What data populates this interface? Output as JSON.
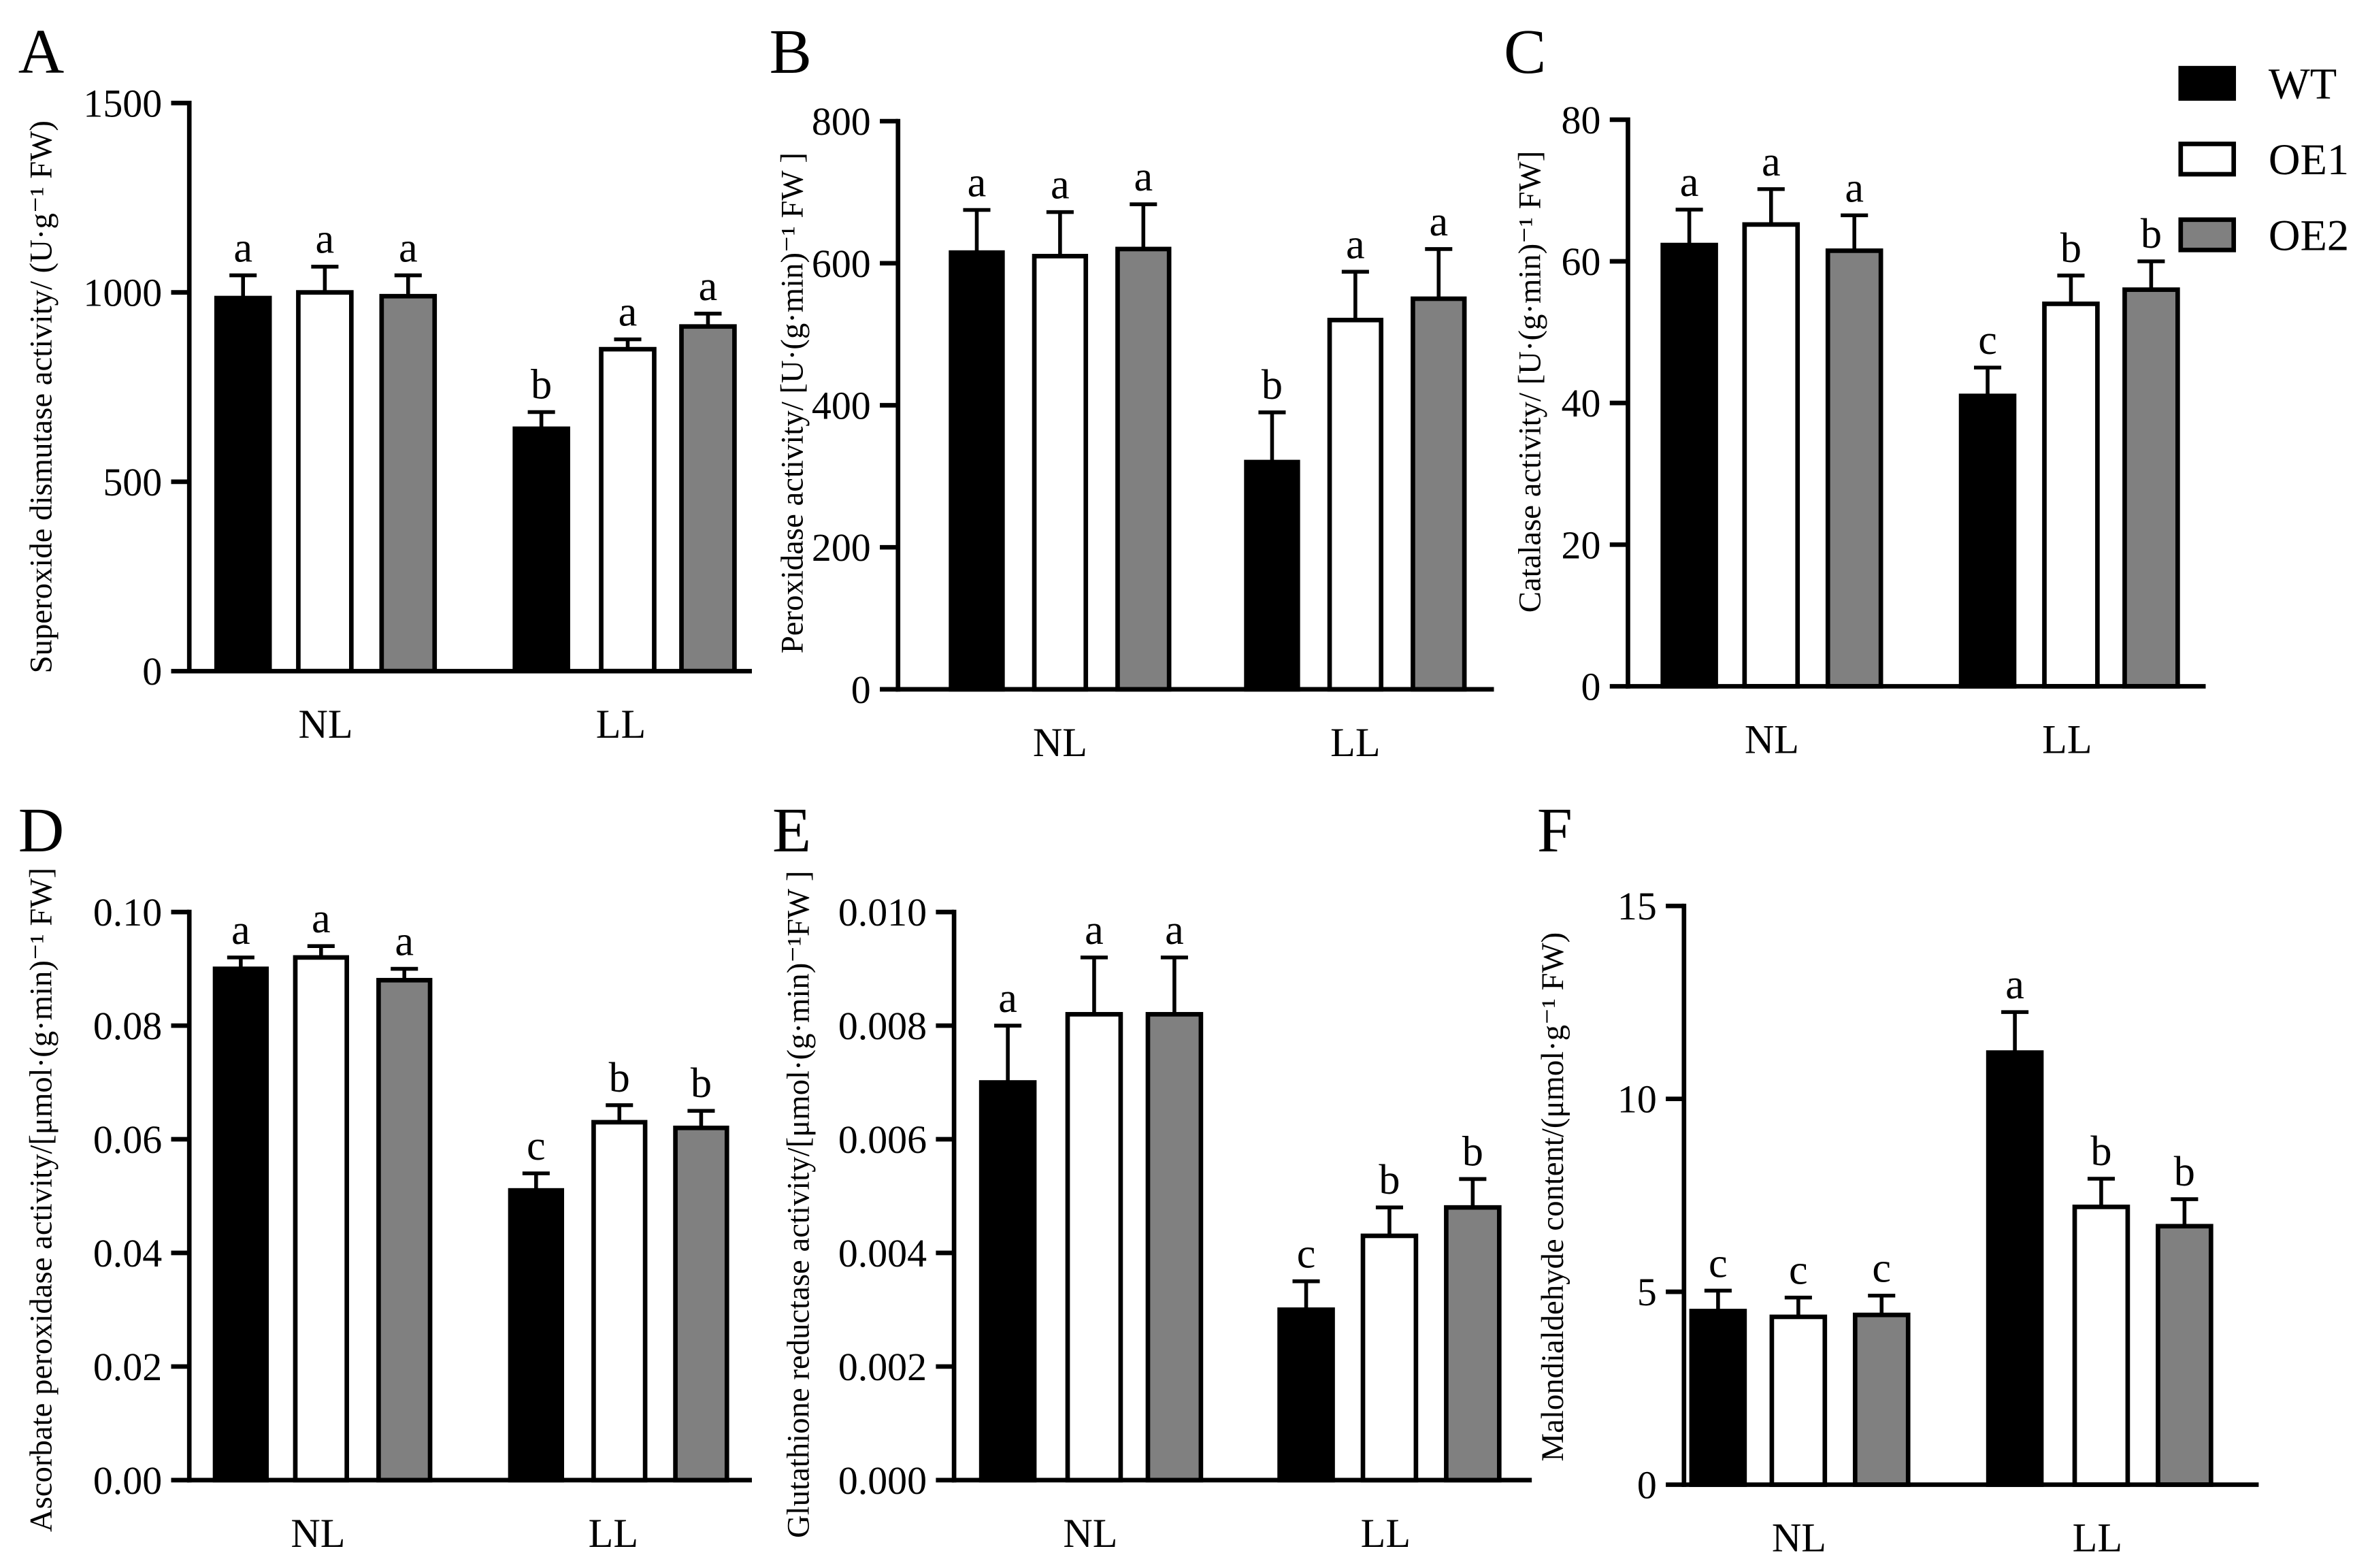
{
  "legend": {
    "position": "top-right",
    "items": [
      {
        "name": "WT",
        "color": "#000000"
      },
      {
        "name": "OE1",
        "color": "#ffffff"
      },
      {
        "name": "OE2",
        "color": "#808080"
      }
    ]
  },
  "chart_data": [
    {
      "panel": "A",
      "type": "bar",
      "ylabel": "Superoxide dismutase activity/ (U·g⁻¹ FW)",
      "categories": [
        "NL",
        "LL"
      ],
      "ylim": [
        0,
        1500
      ],
      "yticks": [
        "0",
        "500",
        "1000",
        "1500"
      ],
      "series": {
        "WT": {
          "values": [
            985,
            640
          ],
          "errors": [
            60,
            44
          ],
          "letters": [
            "a",
            "b"
          ]
        },
        "OE1": {
          "values": [
            1000,
            850
          ],
          "errors": [
            68,
            26
          ],
          "letters": [
            "a",
            "a"
          ]
        },
        "OE2": {
          "values": [
            990,
            910
          ],
          "errors": [
            55,
            34
          ],
          "letters": [
            "a",
            "a"
          ]
        }
      }
    },
    {
      "panel": "B",
      "type": "bar",
      "ylabel": "Peroxidase activity/ [U·(g·min)⁻¹ FW ]",
      "categories": [
        "NL",
        "LL"
      ],
      "ylim": [
        0,
        800
      ],
      "yticks": [
        "0",
        "200",
        "400",
        "600",
        "800"
      ],
      "series": {
        "WT": {
          "values": [
            615,
            320
          ],
          "errors": [
            60,
            70
          ],
          "letters": [
            "a",
            "b"
          ]
        },
        "OE1": {
          "values": [
            610,
            520
          ],
          "errors": [
            62,
            68
          ],
          "letters": [
            "a",
            "a"
          ]
        },
        "OE2": {
          "values": [
            620,
            550
          ],
          "errors": [
            63,
            70
          ],
          "letters": [
            "a",
            "a"
          ]
        }
      }
    },
    {
      "panel": "C",
      "type": "bar",
      "ylabel": "Catalase activity/ [U·(g·min)⁻¹ FW]",
      "categories": [
        "NL",
        "LL"
      ],
      "ylim": [
        0,
        80
      ],
      "yticks": [
        "0",
        "20",
        "40",
        "60",
        "80"
      ],
      "series": {
        "WT": {
          "values": [
            62.3,
            41
          ],
          "errors": [
            5,
            4
          ],
          "letters": [
            "a",
            "c"
          ]
        },
        "OE1": {
          "values": [
            65.2,
            54
          ],
          "errors": [
            5,
            4
          ],
          "letters": [
            "a",
            "b"
          ]
        },
        "OE2": {
          "values": [
            61.5,
            56
          ],
          "errors": [
            5,
            4
          ],
          "letters": [
            "a",
            "b"
          ]
        }
      }
    },
    {
      "panel": "D",
      "type": "bar",
      "ylabel": "Ascorbate peroxidase activity/[μmol·(g·min)⁻¹ FW]",
      "categories": [
        "NL",
        "LL"
      ],
      "ylim": [
        0,
        0.1
      ],
      "yticks": [
        "0.00",
        "0.02",
        "0.04",
        "0.06",
        "0.08",
        "0.10"
      ],
      "series": {
        "WT": {
          "values": [
            0.09,
            0.051
          ],
          "errors": [
            0.002,
            0.003
          ],
          "letters": [
            "a",
            "c"
          ]
        },
        "OE1": {
          "values": [
            0.092,
            0.063
          ],
          "errors": [
            0.002,
            0.003
          ],
          "letters": [
            "a",
            "b"
          ]
        },
        "OE2": {
          "values": [
            0.088,
            0.062
          ],
          "errors": [
            0.002,
            0.003
          ],
          "letters": [
            "a",
            "b"
          ]
        }
      }
    },
    {
      "panel": "E",
      "type": "bar",
      "ylabel": "Glutathione reductase activity/[μmol·(g·min)⁻¹FW ]",
      "categories": [
        "NL",
        "LL"
      ],
      "ylim": [
        0,
        0.01
      ],
      "yticks": [
        "0.000",
        "0.002",
        "0.004",
        "0.006",
        "0.008",
        "0.010"
      ],
      "series": {
        "WT": {
          "values": [
            0.007,
            0.003
          ],
          "errors": [
            0.001,
            0.0005
          ],
          "letters": [
            "a",
            "c"
          ]
        },
        "OE1": {
          "values": [
            0.0082,
            0.0043
          ],
          "errors": [
            0.001,
            0.0005
          ],
          "letters": [
            "a",
            "b"
          ]
        },
        "OE2": {
          "values": [
            0.0082,
            0.0048
          ],
          "errors": [
            0.001,
            0.0005
          ],
          "letters": [
            "a",
            "b"
          ]
        }
      }
    },
    {
      "panel": "F",
      "type": "bar",
      "ylabel": "Malondialdehyde content/(μmol·g⁻¹ FW)",
      "categories": [
        "NL",
        "LL"
      ],
      "ylim": [
        0,
        15
      ],
      "yticks": [
        "0",
        "5",
        "10",
        "15"
      ],
      "series": {
        "WT": {
          "values": [
            4.5,
            11.2
          ],
          "errors": [
            0.53,
            1.05
          ],
          "letters": [
            "c",
            "a"
          ]
        },
        "OE1": {
          "values": [
            4.35,
            7.2
          ],
          "errors": [
            0.5,
            0.73
          ],
          "letters": [
            "c",
            "b"
          ]
        },
        "OE2": {
          "values": [
            4.4,
            6.7
          ],
          "errors": [
            0.5,
            0.7
          ],
          "letters": [
            "c",
            "b"
          ]
        }
      }
    }
  ]
}
